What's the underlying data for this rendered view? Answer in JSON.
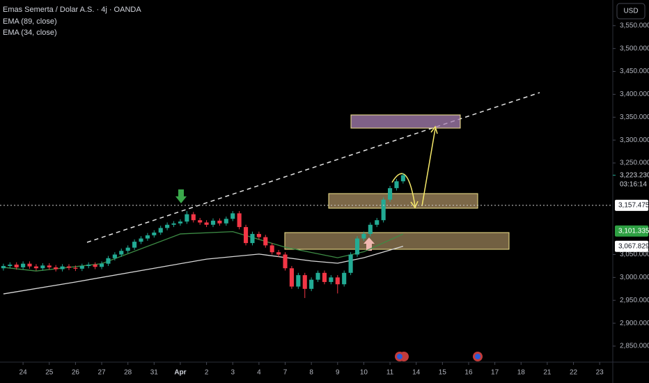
{
  "toolbar": {
    "currency": "USD"
  },
  "chart_data": {
    "type": "candlestick",
    "title": "Emas Semerta / Dolar A.S. · 4j · OANDA",
    "x": [
      -0.75,
      -0.5,
      -0.25,
      0,
      0.25,
      0.5,
      0.75,
      1,
      1.25,
      1.5,
      1.75,
      2,
      2.25,
      2.5,
      2.75,
      3,
      3.25,
      3.5,
      3.75,
      4,
      4.25,
      4.5,
      4.75,
      5,
      5.25,
      5.5,
      5.75,
      6,
      6.25,
      6.5,
      6.75,
      7,
      7.25,
      7.5,
      7.75,
      8,
      8.25,
      8.5,
      8.75,
      9,
      9.25,
      9.5,
      9.75,
      10,
      10.25,
      10.5,
      10.75,
      11,
      11.25,
      11.5,
      11.75,
      12,
      12.25,
      12.5,
      12.75,
      13,
      13.25,
      13.5,
      13.75,
      14,
      14.25,
      14.5
    ],
    "open": [
      3020,
      3025,
      3028,
      3022,
      3030,
      3024,
      3020,
      3026,
      3022,
      3018,
      3024,
      3021,
      3019,
      3025,
      3028,
      3023,
      3030,
      3042,
      3050,
      3058,
      3065,
      3078,
      3085,
      3092,
      3098,
      3108,
      3115,
      3118,
      3122,
      3138,
      3125,
      3120,
      3115,
      3124,
      3118,
      3128,
      3140,
      3110,
      3075,
      3095,
      3088,
      3070,
      3055,
      3050,
      3020,
      2980,
      3005,
      2975,
      2995,
      3010,
      2990,
      3000,
      2985,
      3010,
      3050,
      3085,
      3095,
      3115,
      3125,
      3170,
      3195,
      3210
    ],
    "high": [
      3030,
      3033,
      3033,
      3035,
      3035,
      3029,
      3031,
      3031,
      3027,
      3029,
      3029,
      3026,
      3030,
      3033,
      3033,
      3035,
      3047,
      3055,
      3063,
      3070,
      3083,
      3090,
      3097,
      3103,
      3113,
      3120,
      3123,
      3127,
      3145,
      3143,
      3130,
      3125,
      3129,
      3129,
      3133,
      3145,
      3145,
      3115,
      3100,
      3100,
      3093,
      3075,
      3060,
      3055,
      3025,
      3010,
      3010,
      3000,
      3015,
      3015,
      3005,
      3005,
      3015,
      3055,
      3090,
      3100,
      3120,
      3130,
      3175,
      3200,
      3215,
      3228
    ],
    "low": [
      3015,
      3020,
      3017,
      3017,
      3019,
      3015,
      3015,
      3017,
      3013,
      3013,
      3016,
      3014,
      3014,
      3020,
      3018,
      3018,
      3025,
      3037,
      3045,
      3053,
      3060,
      3073,
      3080,
      3087,
      3093,
      3103,
      3110,
      3113,
      3117,
      3120,
      3115,
      3110,
      3110,
      3113,
      3113,
      3123,
      3105,
      3070,
      3070,
      3083,
      3065,
      3050,
      3045,
      3015,
      2975,
      2975,
      2955,
      2970,
      2990,
      2985,
      2985,
      2965,
      2980,
      3005,
      3045,
      3080,
      3090,
      3110,
      3120,
      3165,
      3190,
      3205
    ],
    "close": [
      3025,
      3028,
      3022,
      3030,
      3024,
      3020,
      3026,
      3022,
      3018,
      3024,
      3021,
      3019,
      3025,
      3028,
      3023,
      3030,
      3042,
      3050,
      3058,
      3065,
      3078,
      3085,
      3092,
      3098,
      3108,
      3115,
      3118,
      3122,
      3138,
      3125,
      3120,
      3115,
      3124,
      3118,
      3128,
      3140,
      3110,
      3075,
      3095,
      3088,
      3070,
      3055,
      3050,
      3020,
      2980,
      3005,
      2975,
      2995,
      3010,
      2990,
      3000,
      2985,
      3010,
      3050,
      3085,
      3095,
      3115,
      3125,
      3170,
      3195,
      3210,
      3223.23
    ],
    "up_color": "#22ab94",
    "down_color": "#f23645",
    "series": [
      {
        "name": "EMA (89, close)",
        "color": "#d9d9d9",
        "x": [
          -0.75,
          2,
          5,
          7,
          9,
          11,
          12,
          13,
          14.5
        ],
        "values": [
          2964,
          2990,
          3020,
          3040,
          3051,
          3036,
          3031,
          3043,
          3068
        ]
      },
      {
        "name": "EMA (34, close)",
        "color": "#3d8c45",
        "x": [
          -0.75,
          0.5,
          3,
          6,
          8,
          10,
          12,
          13,
          14.5
        ],
        "values": [
          3022,
          3014,
          3030,
          3095,
          3100,
          3066,
          3043,
          3056,
          3095
        ]
      }
    ],
    "xlim": [
      -0.88,
      22.5
    ],
    "xticks": [
      {
        "value": 0,
        "label": "24"
      },
      {
        "value": 1,
        "label": "25"
      },
      {
        "value": 2,
        "label": "26"
      },
      {
        "value": 3,
        "label": "27"
      },
      {
        "value": 4,
        "label": "28"
      },
      {
        "value": 5,
        "label": "31"
      },
      {
        "value": 6,
        "label": "Apr"
      },
      {
        "value": 7,
        "label": "2"
      },
      {
        "value": 8,
        "label": "3"
      },
      {
        "value": 9,
        "label": "4"
      },
      {
        "value": 10,
        "label": "7"
      },
      {
        "value": 11,
        "label": "8"
      },
      {
        "value": 12,
        "label": "9"
      },
      {
        "value": 13,
        "label": "10"
      },
      {
        "value": 14,
        "label": "11"
      },
      {
        "value": 15,
        "label": "14"
      },
      {
        "value": 16,
        "label": "15"
      },
      {
        "value": 17,
        "label": "16"
      },
      {
        "value": 18,
        "label": "17"
      },
      {
        "value": 19,
        "label": "18"
      },
      {
        "value": 20,
        "label": "21"
      },
      {
        "value": 21,
        "label": "22"
      },
      {
        "value": 22,
        "label": "23"
      }
    ],
    "ylim": [
      2815,
      3606
    ],
    "yticks": [
      {
        "value": 3550,
        "label": "3,550.000"
      },
      {
        "value": 3500,
        "label": "3,500.000"
      },
      {
        "value": 3450,
        "label": "3,450.000"
      },
      {
        "value": 3400,
        "label": "3,400.000"
      },
      {
        "value": 3350,
        "label": "3,350.000"
      },
      {
        "value": 3300,
        "label": "3,300.000"
      },
      {
        "value": 3250,
        "label": "3,250.000"
      },
      {
        "value": 3050,
        "label": "3,050.000"
      },
      {
        "value": 3000,
        "label": "3,000.000"
      },
      {
        "value": 2950,
        "label": "2,950.000"
      },
      {
        "value": 2900,
        "label": "2,900.000"
      },
      {
        "value": 2850,
        "label": "2,850.000"
      }
    ],
    "grid": false,
    "last_price": {
      "value": 3223.23,
      "label": "3,223.230",
      "countdown": "03:16:14"
    },
    "price_labels": [
      {
        "value": 3157.475,
        "label": "3,157.475",
        "color": "#ffffff"
      },
      {
        "value": 3101.335,
        "label": "3,101.335",
        "color": "#2ea043"
      },
      {
        "value": 3067.829,
        "label": "3,067.829",
        "color": "#ffffff"
      }
    ]
  }
}
